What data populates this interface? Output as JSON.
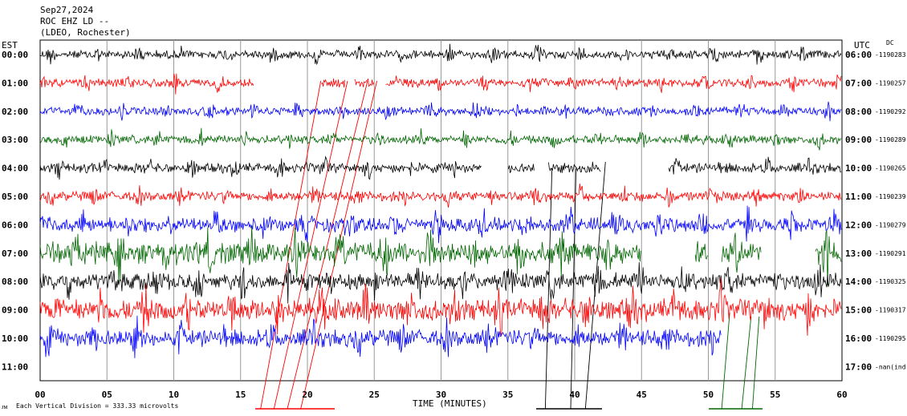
{
  "header": {
    "date": "Sep27,2024",
    "station": "ROC EHZ LD --",
    "network": "(LDEO, Rochester)"
  },
  "left_zone": "EST",
  "right_zone": "UTC",
  "dc_label": "DC",
  "xlabel": "TIME (MINUTES)",
  "footer_note": "Each Vertical Division =  333.33 microvolts",
  "colors": {
    "black": "#000000",
    "red": "#ff0000",
    "blue": "#0000ff",
    "green": "#006600"
  },
  "chart_data": {
    "type": "line",
    "title": "Sep27,2024 ROC EHZ LD -- (LDEO, Rochester)",
    "xlabel": "TIME (MINUTES)",
    "xlim": [
      0,
      60
    ],
    "xticks": [
      "00",
      "05",
      "10",
      "15",
      "20",
      "25",
      "30",
      "35",
      "40",
      "45",
      "50",
      "55",
      "60"
    ],
    "grid": "vertical every 5 minutes",
    "series": [
      {
        "left": "00:00",
        "right": "06:00",
        "dc": "-1190283",
        "color": "black",
        "amp": 0.35,
        "gaps": []
      },
      {
        "left": "01:00",
        "right": "07:00",
        "dc": "-1190257",
        "color": "red",
        "amp": 0.35,
        "gaps": [
          [
            16.0,
            21.0
          ],
          [
            22.8,
            23.5
          ],
          [
            25.0,
            25.8
          ]
        ]
      },
      {
        "left": "02:00",
        "right": "08:00",
        "dc": "-1190292",
        "color": "blue",
        "amp": 0.35,
        "gaps": []
      },
      {
        "left": "03:00",
        "right": "09:00",
        "dc": "-1190289",
        "color": "green",
        "amp": 0.35,
        "gaps": []
      },
      {
        "left": "04:00",
        "right": "10:00",
        "dc": "-1190265",
        "color": "black",
        "amp": 0.4,
        "gaps": [
          [
            33.0,
            35.0
          ],
          [
            37.0,
            38.0
          ],
          [
            42.0,
            47.0
          ]
        ]
      },
      {
        "left": "05:00",
        "right": "11:00",
        "dc": "-1190239",
        "color": "red",
        "amp": 0.4,
        "gaps": []
      },
      {
        "left": "06:00",
        "right": "12:00",
        "dc": "-1190279",
        "color": "blue",
        "amp": 0.6,
        "gaps": []
      },
      {
        "left": "07:00",
        "right": "13:00",
        "dc": "-1190291",
        "color": "green",
        "amp": 0.9,
        "gaps": [
          [
            45.0,
            49.0
          ],
          [
            50.0,
            51.0
          ],
          [
            54.0,
            58.0
          ]
        ]
      },
      {
        "left": "08:00",
        "right": "14:00",
        "dc": "-1190325",
        "color": "black",
        "amp": 0.7,
        "gaps": []
      },
      {
        "left": "09:00",
        "right": "15:00",
        "dc": "-1190317",
        "color": "red",
        "amp": 0.9,
        "gaps": []
      },
      {
        "left": "10:00",
        "right": "16:00",
        "dc": "-1190295",
        "color": "blue",
        "amp": 0.7,
        "gaps": [
          [
            51.0,
            60.0
          ]
        ]
      },
      {
        "left": "11:00",
        "right": "17:00",
        "dc": "-nan(ind",
        "color": "black",
        "amp": 0.0,
        "gaps": [
          [
            0.0,
            60.0
          ]
        ]
      }
    ]
  }
}
